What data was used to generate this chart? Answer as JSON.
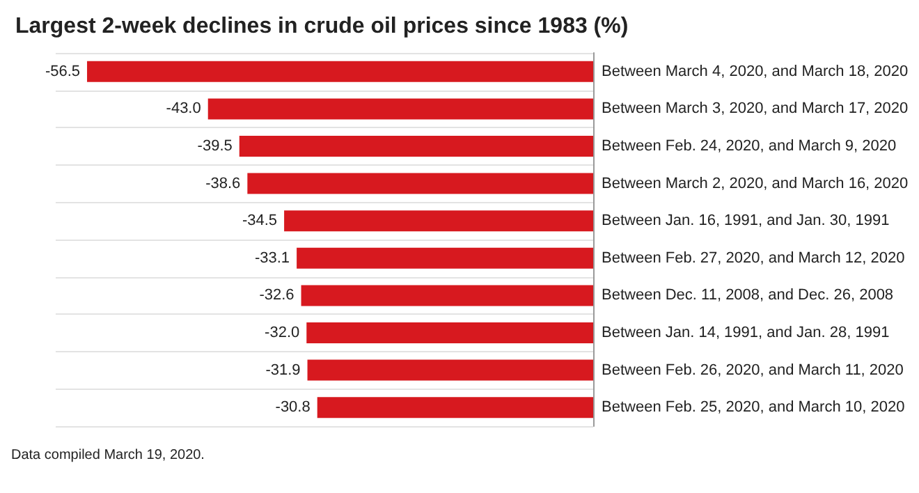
{
  "chart_data": {
    "type": "bar",
    "orientation": "horizontal",
    "title": "Largest 2-week declines in crude oil prices since 1983 (%)",
    "categories": [
      "Between March 4, 2020, and March 18, 2020",
      "Between March 3, 2020, and March 17, 2020",
      "Between Feb. 24, 2020, and March 9, 2020",
      "Between March 2, 2020, and March 16, 2020",
      "Between Jan. 16, 1991, and Jan. 30, 1991",
      "Between Feb. 27, 2020, and March 12, 2020",
      "Between Dec. 11, 2008, and Dec. 26, 2008",
      "Between Jan. 14, 1991, and Jan. 28, 1991",
      "Between Feb. 26, 2020, and March 11, 2020",
      "Between Feb. 25, 2020, and March 10, 2020"
    ],
    "values": [
      -56.5,
      -43.0,
      -39.5,
      -38.6,
      -34.5,
      -33.1,
      -32.6,
      -32.0,
      -31.9,
      -30.8
    ],
    "value_labels": [
      "-56.5",
      "-43.0",
      "-39.5",
      "-38.6",
      "-34.5",
      "-33.1",
      "-32.6",
      "-32.0",
      "-31.9",
      "-30.8"
    ],
    "color": "#d7191f",
    "grid": "y",
    "annotations": [
      "Data compiled March 19, 2020."
    ]
  }
}
